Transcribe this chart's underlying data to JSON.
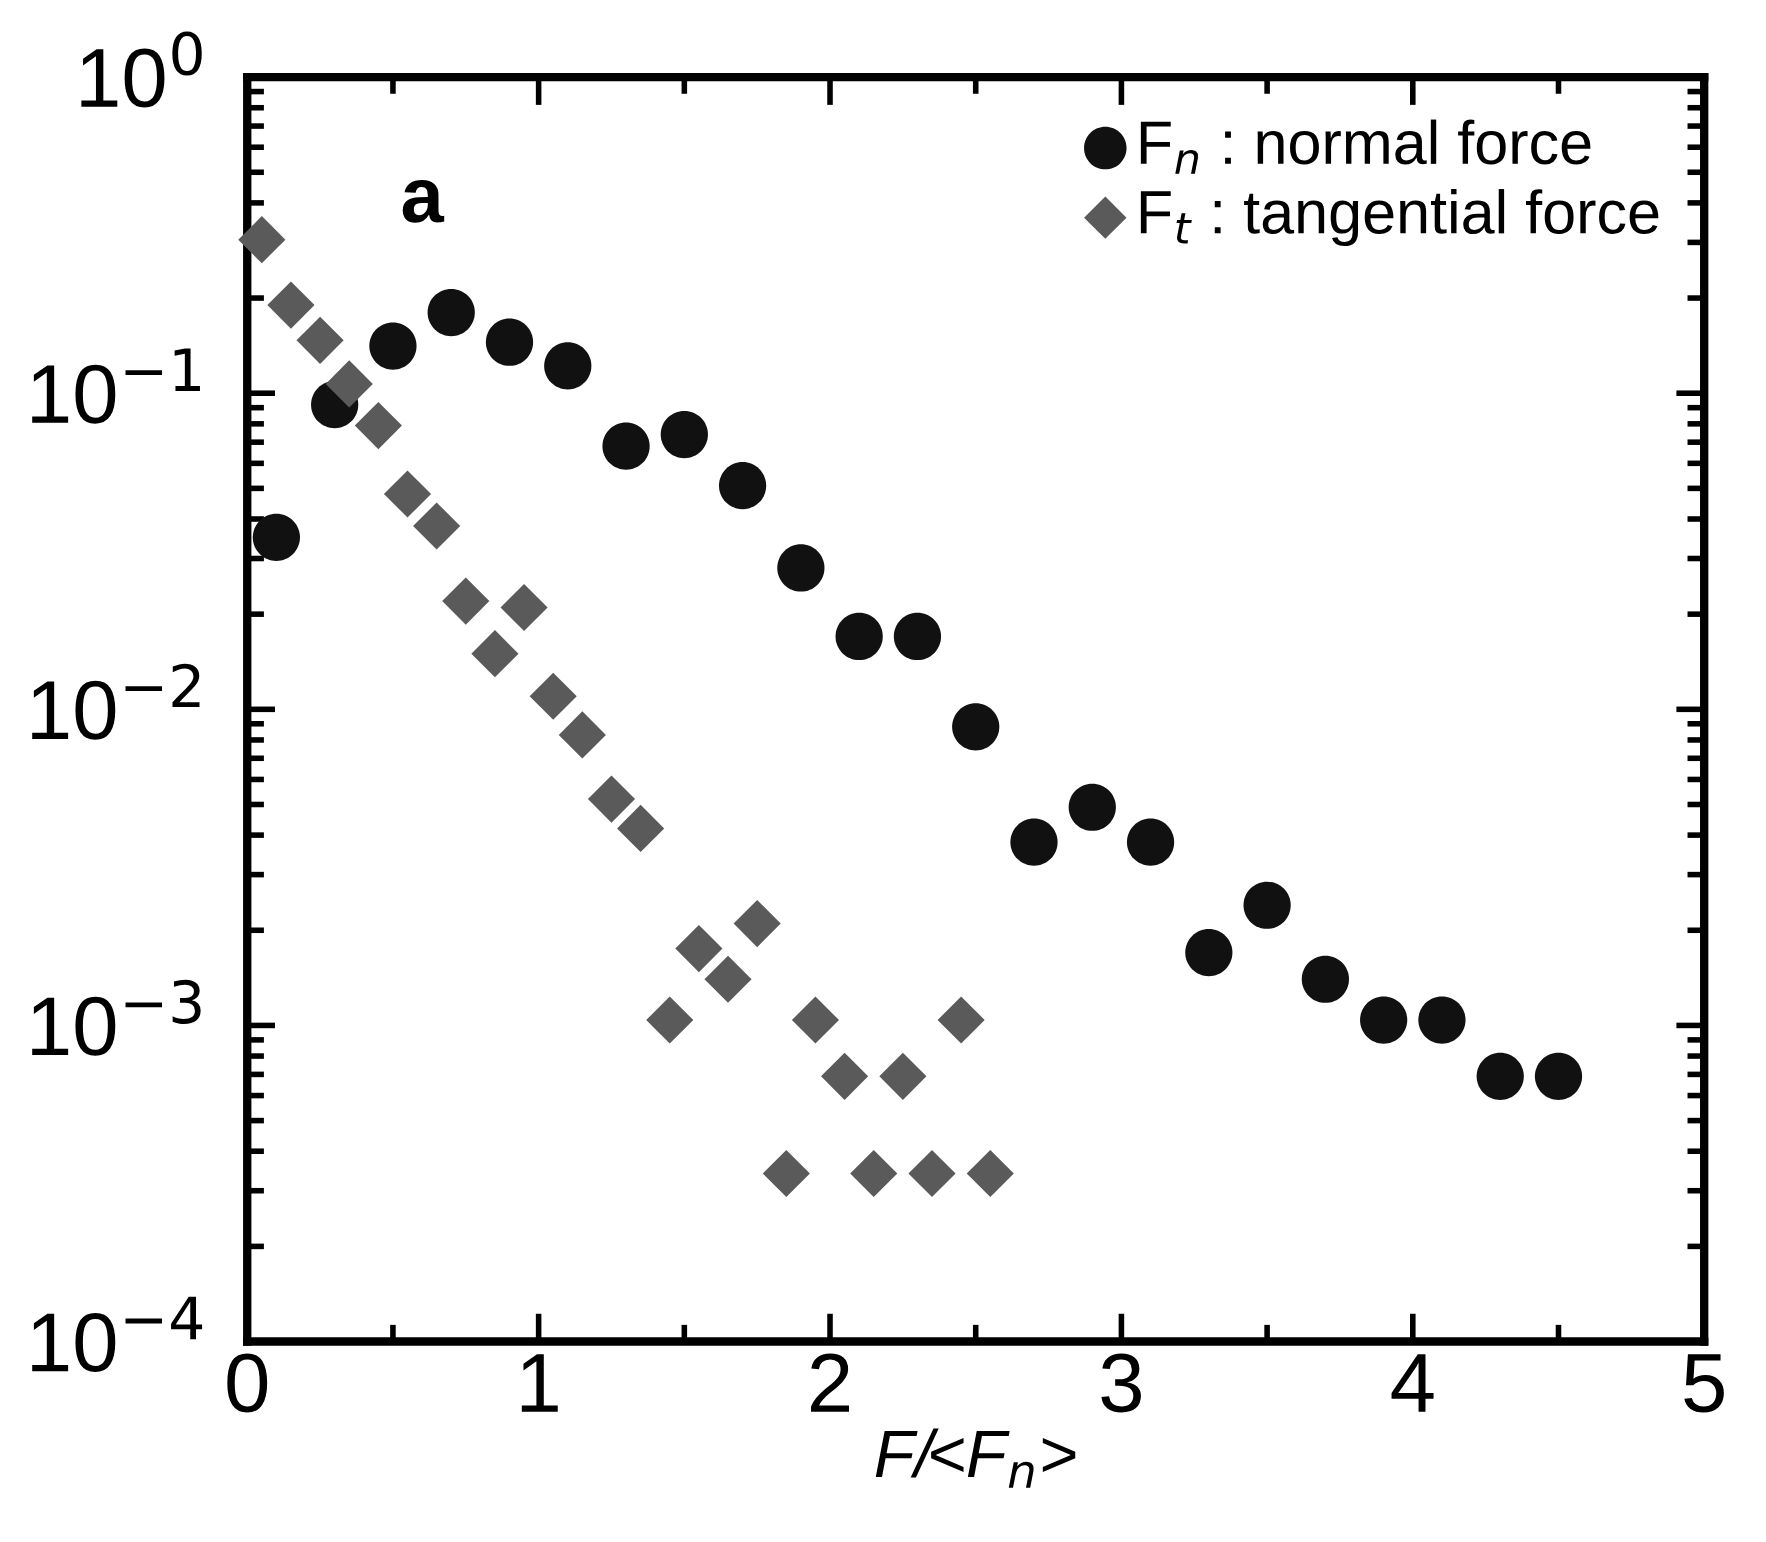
{
  "chart_data": {
    "type": "scatter",
    "xlabel": "F/<F$_{n}$>",
    "log": "y",
    "xlim": [
      0,
      5
    ],
    "xticks": [
      0,
      1,
      2,
      3,
      4,
      5
    ],
    "ylim": [
      0.0001,
      1
    ],
    "yticks": [
      {
        "value": 0.0001,
        "label": "10$^{−4}$"
      },
      {
        "value": 0.001,
        "label": "10$^{−3}$"
      },
      {
        "value": 0.01,
        "label": "10$^{−2}$"
      },
      {
        "value": 0.1,
        "label": "10$^{−1}$"
      },
      {
        "value": 1,
        "label": "10$^{0}$"
      }
    ],
    "annotations": [
      "a"
    ],
    "legend": "top right",
    "grid": false,
    "series": [
      {
        "name": "F$_{n}$ : normal force",
        "color": "#111111",
        "marker": "circle",
        "x": [
          0.1,
          0.3,
          0.5,
          0.7,
          0.9,
          1.1,
          1.3,
          1.5,
          1.7,
          1.9,
          2.1,
          2.3,
          2.5,
          2.7,
          2.9,
          3.1,
          3.3,
          3.5,
          3.7,
          3.9,
          4.1,
          4.3,
          4.5
        ],
        "values": [
          0.035,
          0.092,
          0.141,
          0.18,
          0.145,
          0.122,
          0.068,
          0.074,
          0.051,
          0.028,
          0.017,
          0.017,
          0.0088,
          0.0038,
          0.0049,
          0.0038,
          0.0017,
          0.0024,
          0.0014,
          0.00104,
          0.00104,
          0.00069,
          0.00069
        ]
      },
      {
        "name": "F$_{t}$ : tangential force",
        "color": "#5a5a5a",
        "marker": "diamond",
        "x": [
          0.05,
          0.15,
          0.25,
          0.35,
          0.45,
          0.55,
          0.65,
          0.75,
          0.85,
          0.95,
          1.05,
          1.15,
          1.25,
          1.35,
          1.45,
          1.55,
          1.65,
          1.75,
          1.85,
          1.95,
          2.05,
          2.15,
          2.25,
          2.35,
          2.45,
          2.55
        ],
        "values": [
          0.306,
          0.19,
          0.147,
          0.107,
          0.079,
          0.048,
          0.038,
          0.022,
          0.015,
          0.021,
          0.011,
          0.0083,
          0.0052,
          0.0042,
          0.00104,
          0.00175,
          0.0014,
          0.0021,
          0.00034,
          0.00104,
          0.00069,
          0.00034,
          0.00069,
          0.00034,
          0.00104,
          0.00034
        ]
      }
    ]
  }
}
